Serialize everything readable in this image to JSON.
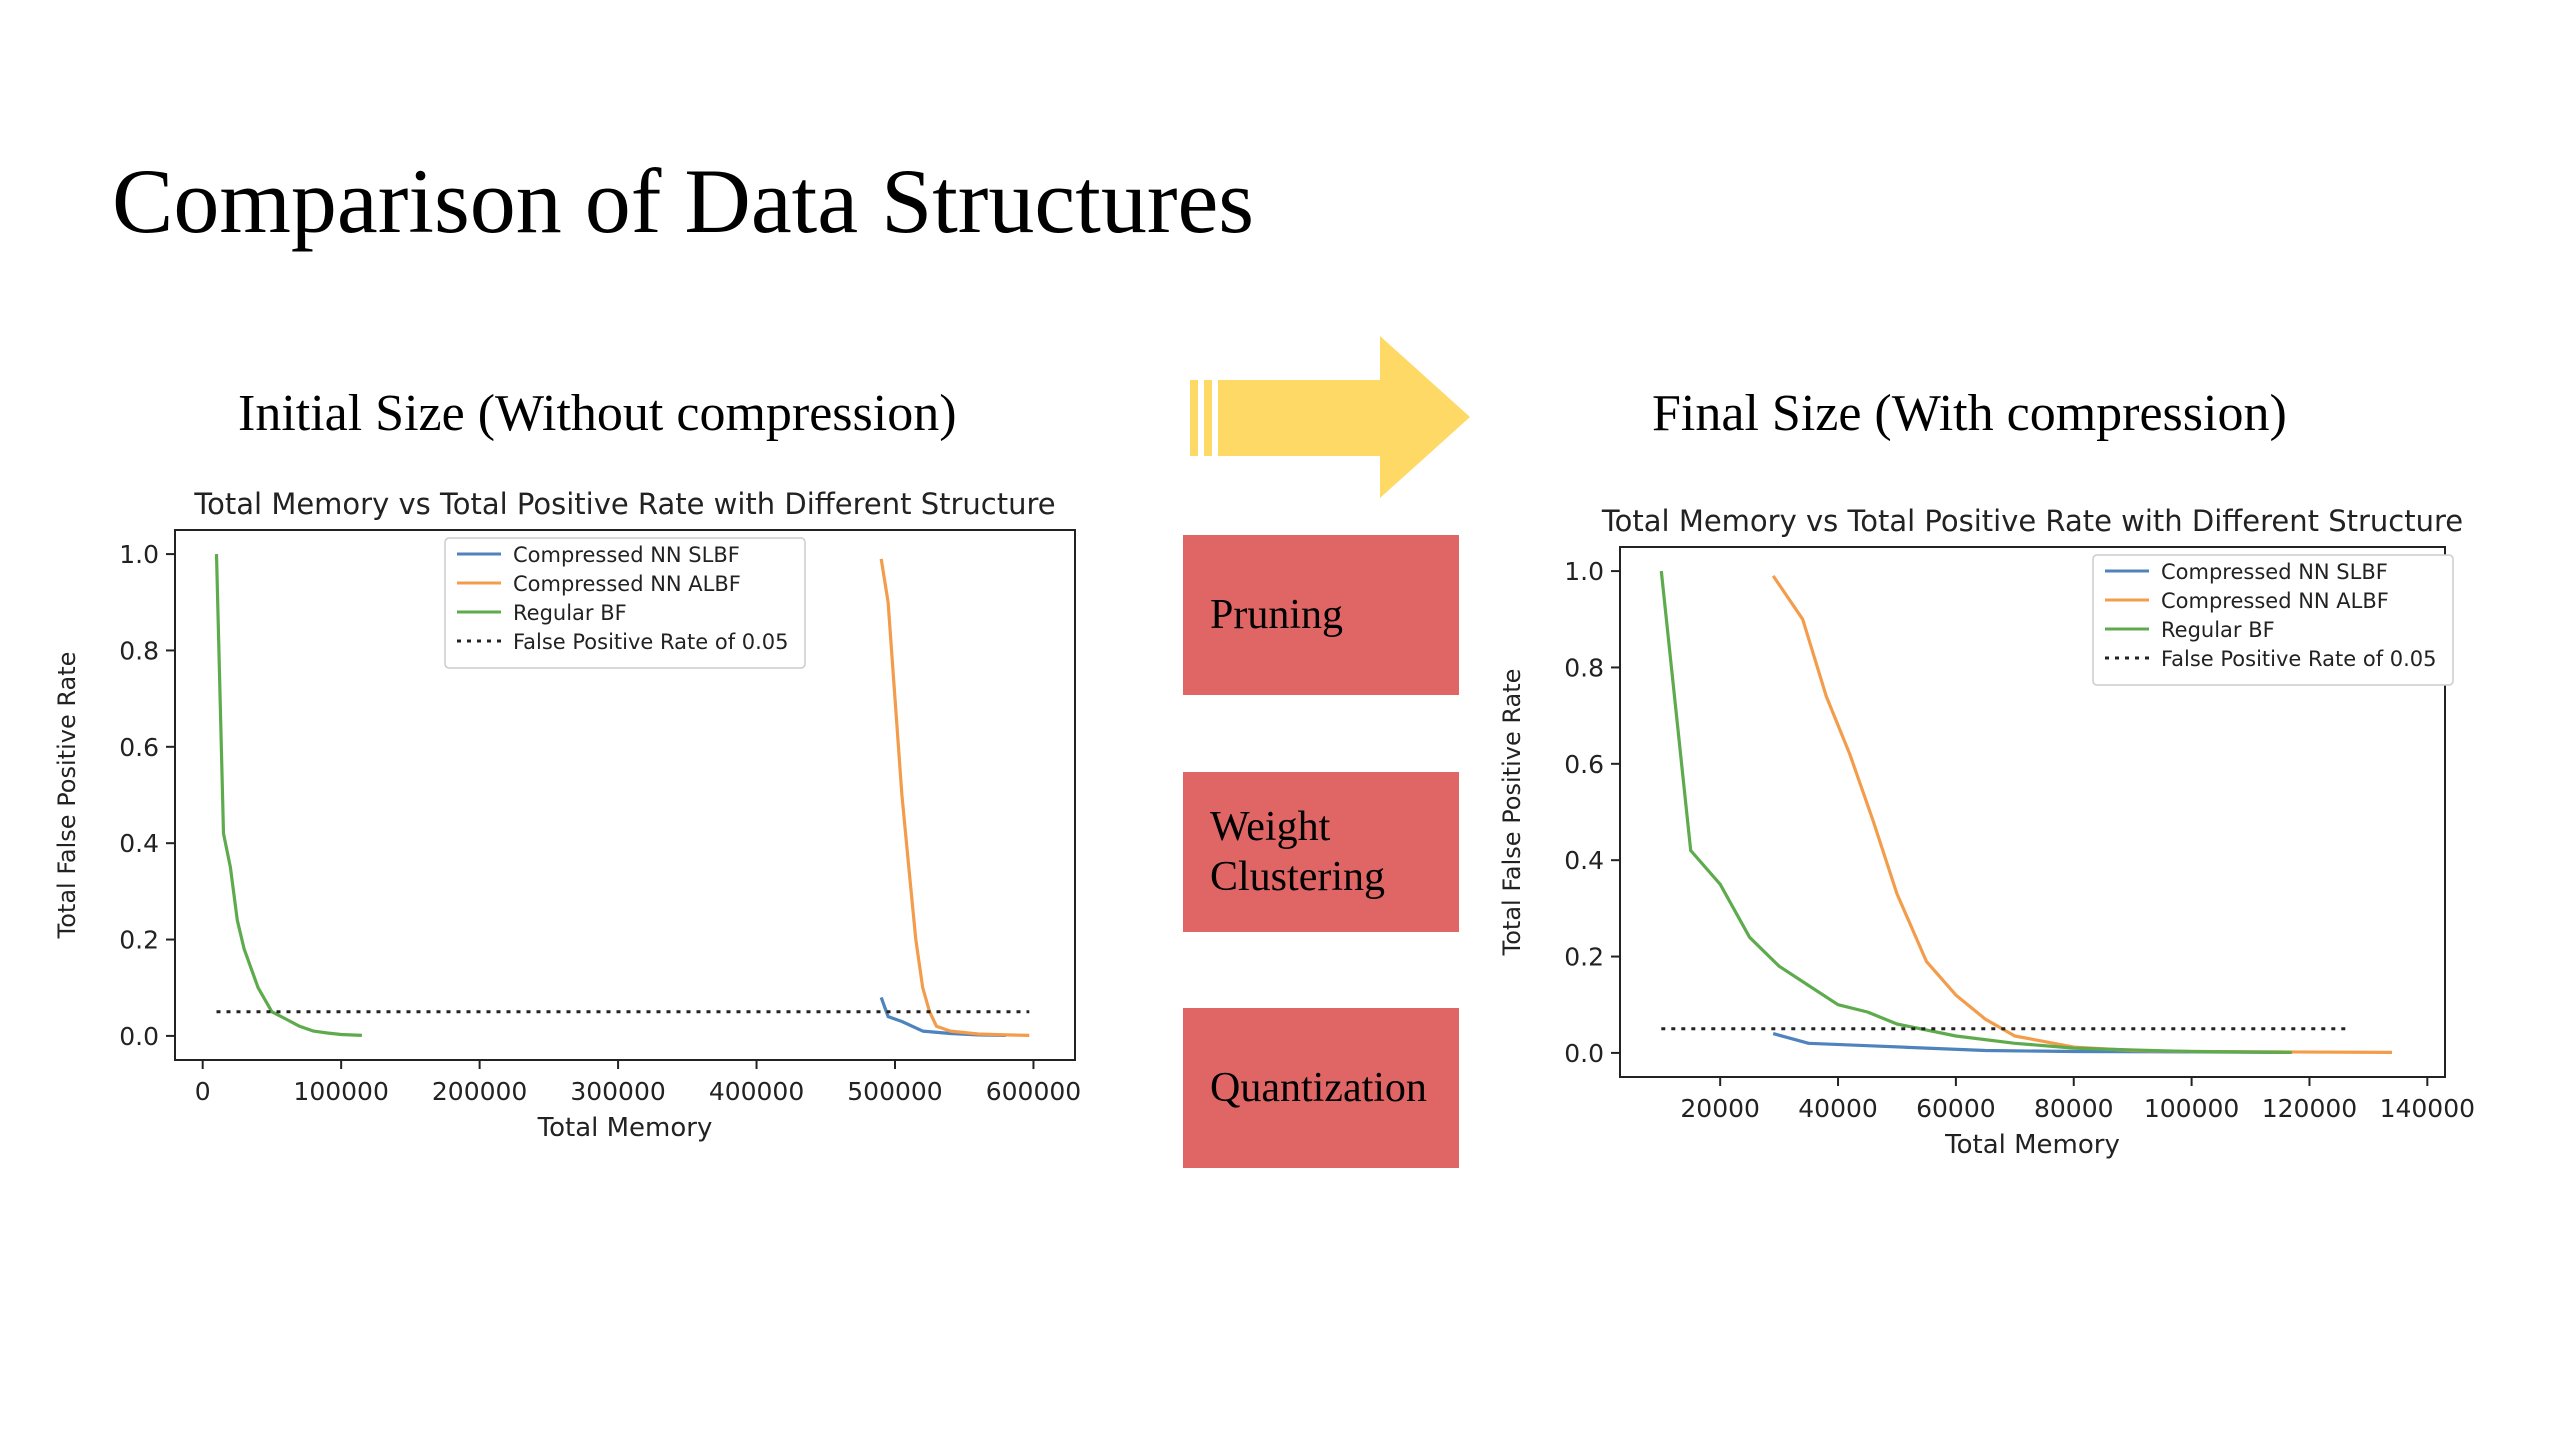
{
  "slide": {
    "title": "Comparison of Data Structures",
    "left_subtitle": "Initial Size (Without compression)",
    "right_subtitle": "Final Size (With compression)",
    "steps": [
      "Pruning",
      "Weight\nClustering",
      "Quantization"
    ]
  },
  "colors": {
    "arrow": "#ffd966",
    "step_box": "#e06666",
    "slbf": "#4e83bd",
    "albf": "#f39c4b",
    "regular": "#5eab4e",
    "fpr_line": "#222222"
  },
  "chart_data": [
    {
      "type": "line",
      "title": "Total Memory vs Total Positive Rate with Different Structure",
      "xlabel": "Total Memory",
      "ylabel": "Total False Positive Rate",
      "xlim": [
        -20000,
        630000
      ],
      "ylim": [
        -0.05,
        1.05
      ],
      "xticks": [
        0,
        100000,
        200000,
        300000,
        400000,
        500000,
        600000
      ],
      "yticks": [
        0.0,
        0.2,
        0.4,
        0.6,
        0.8,
        1.0
      ],
      "legend_position": "top-center",
      "series": [
        {
          "name": "Compressed NN SLBF",
          "color": "#4e83bd",
          "x": [
            490000,
            495000,
            505000,
            520000,
            540000,
            560000,
            580000
          ],
          "y": [
            0.08,
            0.04,
            0.03,
            0.01,
            0.005,
            0.002,
            0.001
          ]
        },
        {
          "name": "Compressed NN ALBF",
          "color": "#f39c4b",
          "x": [
            490000,
            495000,
            500000,
            505000,
            510000,
            515000,
            520000,
            525000,
            530000,
            540000,
            560000,
            580000,
            597000
          ],
          "y": [
            0.99,
            0.9,
            0.7,
            0.5,
            0.35,
            0.2,
            0.1,
            0.05,
            0.02,
            0.01,
            0.004,
            0.002,
            0.001
          ]
        },
        {
          "name": "Regular BF",
          "color": "#5eab4e",
          "x": [
            10000,
            15000,
            20000,
            25000,
            30000,
            40000,
            50000,
            60000,
            70000,
            80000,
            90000,
            100000,
            115000
          ],
          "y": [
            1.0,
            0.42,
            0.35,
            0.24,
            0.18,
            0.1,
            0.05,
            0.035,
            0.02,
            0.01,
            0.006,
            0.003,
            0.001
          ]
        },
        {
          "name": "False Positive Rate of 0.05",
          "color": "#222222",
          "dashed": true,
          "x": [
            10000,
            597000
          ],
          "y": [
            0.05,
            0.05
          ]
        }
      ]
    },
    {
      "type": "line",
      "title": "Total Memory vs Total Positive Rate with Different Structure",
      "xlabel": "Total Memory",
      "ylabel": "Total False Positive Rate",
      "xlim": [
        3000,
        143000
      ],
      "ylim": [
        -0.05,
        1.05
      ],
      "xticks": [
        20000,
        40000,
        60000,
        80000,
        100000,
        120000,
        140000
      ],
      "yticks": [
        0.0,
        0.2,
        0.4,
        0.6,
        0.8,
        1.0
      ],
      "legend_position": "top-right",
      "series": [
        {
          "name": "Compressed NN SLBF",
          "color": "#4e83bd",
          "x": [
            29000,
            35000,
            45000,
            55000,
            65000,
            80000,
            100000,
            117000
          ],
          "y": [
            0.04,
            0.02,
            0.015,
            0.01,
            0.005,
            0.003,
            0.002,
            0.001
          ]
        },
        {
          "name": "Compressed NN ALBF",
          "color": "#f39c4b",
          "x": [
            29000,
            34000,
            38000,
            42000,
            46000,
            50000,
            55000,
            60000,
            65000,
            70000,
            80000,
            90000,
            100000,
            115000,
            134000
          ],
          "y": [
            0.99,
            0.9,
            0.74,
            0.62,
            0.48,
            0.33,
            0.19,
            0.12,
            0.07,
            0.035,
            0.012,
            0.005,
            0.003,
            0.002,
            0.001
          ]
        },
        {
          "name": "Regular BF",
          "color": "#5eab4e",
          "x": [
            10000,
            15000,
            20000,
            25000,
            30000,
            35000,
            40000,
            45000,
            50000,
            60000,
            70000,
            80000,
            90000,
            100000,
            117000
          ],
          "y": [
            1.0,
            0.42,
            0.35,
            0.24,
            0.18,
            0.14,
            0.1,
            0.085,
            0.06,
            0.035,
            0.02,
            0.01,
            0.006,
            0.003,
            0.001
          ]
        },
        {
          "name": "False Positive Rate of 0.05",
          "color": "#222222",
          "dashed": true,
          "x": [
            10000,
            127000
          ],
          "y": [
            0.05,
            0.05
          ]
        }
      ]
    }
  ]
}
